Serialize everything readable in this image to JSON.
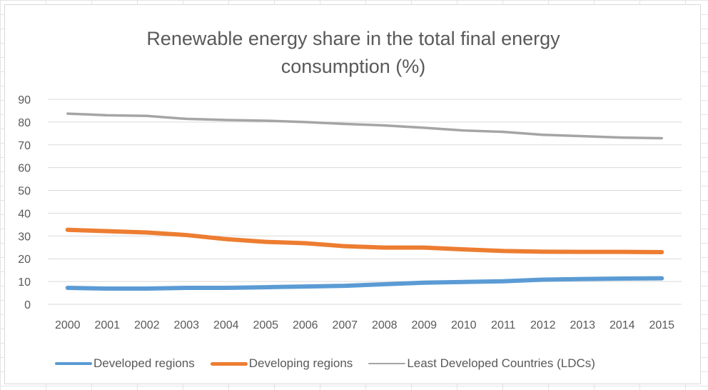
{
  "chart_data": {
    "type": "line",
    "title_lines": [
      "Renewable energy share in the total final energy",
      "consumption (%)"
    ],
    "xlabel": "",
    "ylabel": "",
    "ylim": [
      0,
      90
    ],
    "y_ticks": [
      0,
      10,
      20,
      30,
      40,
      50,
      60,
      70,
      80,
      90
    ],
    "x": [
      "2000",
      "2001",
      "2002",
      "2003",
      "2004",
      "2005",
      "2006",
      "2007",
      "2008",
      "2009",
      "2010",
      "2011",
      "2012",
      "2013",
      "2014",
      "2015"
    ],
    "grid": true,
    "legend_position": "bottom",
    "series": [
      {
        "name": "Developed regions",
        "color": "#5b9bd5",
        "values": [
          7.2,
          6.9,
          6.9,
          7.2,
          7.2,
          7.5,
          7.8,
          8.1,
          8.8,
          9.5,
          9.8,
          10.1,
          10.8,
          11.1,
          11.3,
          11.4
        ]
      },
      {
        "name": "Developing regions",
        "color": "#ed7d31",
        "values": [
          32.7,
          32.1,
          31.5,
          30.4,
          28.6,
          27.4,
          26.8,
          25.5,
          24.9,
          24.9,
          24.1,
          23.4,
          23.1,
          23.0,
          23.0,
          22.9
        ]
      },
      {
        "name": "Least Developed Countries (LDCs)",
        "color": "#a5a5a5",
        "values": [
          83.7,
          83.0,
          82.7,
          81.4,
          80.9,
          80.6,
          80.0,
          79.2,
          78.5,
          77.5,
          76.3,
          75.7,
          74.4,
          73.8,
          73.2,
          72.9
        ]
      }
    ]
  }
}
